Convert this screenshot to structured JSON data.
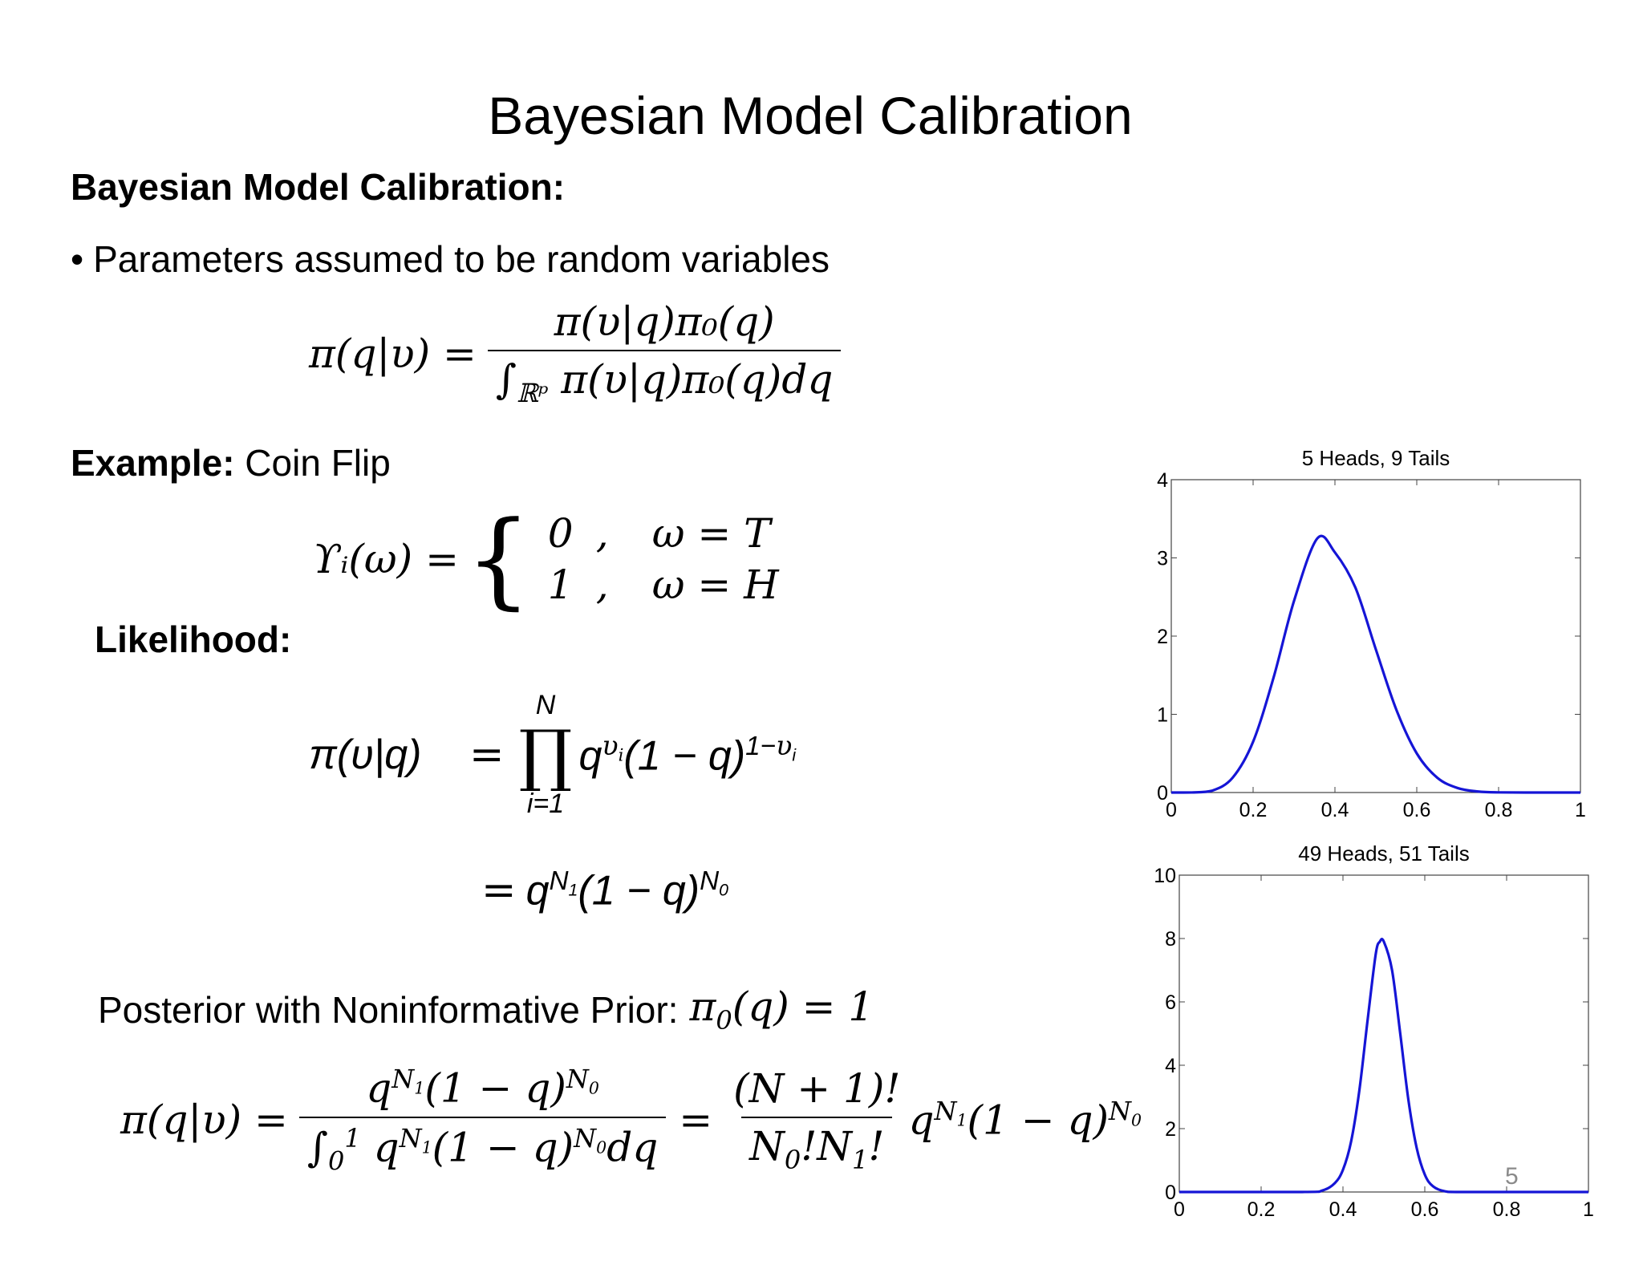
{
  "slide": {
    "title": "Bayesian Model Calibration",
    "section_heading": "Bayesian Model Calibration:",
    "bullet_marker": "•",
    "bullet_text": "Parameters assumed to be random variables",
    "example_label": "Example:",
    "example_text": " Coin Flip",
    "likelihood_label": "Likelihood:",
    "posterior_label": "Posterior with Noninformative Prior:",
    "page_number": "5"
  },
  "equations": {
    "bayes_lhs": "π(q|υ) =",
    "bayes_num": "π(υ|q)π₀(q)",
    "bayes_den_int": "∫",
    "bayes_den_domain": "ℝᵖ",
    "bayes_den_body": " π(υ|q)π₀(q)dq",
    "coin_lhs": "ϒᵢ(ω) =",
    "coin_brace": "{",
    "coin_case1_val": "0",
    "coin_case1_comma": ",",
    "coin_case1_cond": "ω = T",
    "coin_case2_val": "1",
    "coin_case2_comma": ",",
    "coin_case2_cond": "ω = H",
    "lik_lhs": "π(υ|q)",
    "lik_eq1": "=",
    "lik_prod_top": "N",
    "lik_prod_symbol": "∏",
    "lik_prod_bottom": "i=1",
    "lik_body": "q^υᵢ (1 − q)^(1−υᵢ)",
    "lik_eq2": "=",
    "lik_result": "q^N₁ (1 − q)^N₀",
    "prior_eq": "π₀(q) = 1",
    "post_lhs": "π(q|υ) =",
    "post_num1": "q^N₁(1 − q)^N₀",
    "post_den1": "∫₀¹ q^N₁(1 − q)^N₀ dq",
    "post_eq2": "=",
    "post_num2": "(N + 1)!",
    "post_den2": "N₀!N₁!",
    "post_tail": "q^N₁(1 − q)^N₀"
  },
  "chart_data": [
    {
      "type": "line",
      "title": "5 Heads, 9 Tails",
      "xlabel": "",
      "ylabel": "",
      "xlim": [
        0,
        1
      ],
      "ylim": [
        0,
        4
      ],
      "xticks": [
        0,
        0.2,
        0.4,
        0.6,
        0.8,
        1
      ],
      "xtick_labels": [
        "0",
        "0.2",
        "0.4",
        "0.6",
        "0.8",
        "1"
      ],
      "yticks": [
        0,
        1,
        2,
        3,
        4
      ],
      "ytick_labels": [
        "0",
        "1",
        "2",
        "3",
        "4"
      ],
      "line_color": "#1515d6",
      "series": [
        {
          "x": [
            0,
            0.05,
            0.1,
            0.15,
            0.2,
            0.25,
            0.3,
            0.357,
            0.4,
            0.45,
            0.5,
            0.55,
            0.6,
            0.65,
            0.7,
            0.75,
            0.8,
            0.9,
            1
          ],
          "y": [
            0,
            0.0005,
            0.024,
            0.19,
            0.65,
            1.47,
            2.45,
            3.25,
            3.07,
            2.62,
            1.83,
            1.06,
            0.5,
            0.19,
            0.057,
            0.013,
            0.0019,
            1e-05,
            0
          ]
        }
      ]
    },
    {
      "type": "line",
      "title": "49 Heads, 51 Tails",
      "xlabel": "",
      "ylabel": "",
      "xlim": [
        0,
        1
      ],
      "ylim": [
        0,
        10
      ],
      "xticks": [
        0,
        0.2,
        0.4,
        0.6,
        0.8,
        1
      ],
      "xtick_labels": [
        "0",
        "0.2",
        "0.4",
        "0.6",
        "0.8",
        "1"
      ],
      "yticks": [
        0,
        2,
        4,
        6,
        8,
        10
      ],
      "ytick_labels": [
        "0",
        "2",
        "4",
        "6",
        "8",
        "10"
      ],
      "line_color": "#1515d6",
      "series": [
        {
          "x": [
            0,
            0.3,
            0.35,
            0.38,
            0.4,
            0.42,
            0.44,
            0.46,
            0.48,
            0.49,
            0.5,
            0.52,
            0.54,
            0.56,
            0.58,
            0.6,
            0.62,
            0.65,
            0.7,
            1
          ],
          "y": [
            0,
            0,
            0.05,
            0.28,
            0.7,
            1.6,
            3.2,
            5.4,
            7.5,
            7.9,
            7.9,
            7.0,
            5.0,
            2.9,
            1.4,
            0.55,
            0.18,
            0.02,
            0,
            0
          ]
        }
      ]
    }
  ]
}
